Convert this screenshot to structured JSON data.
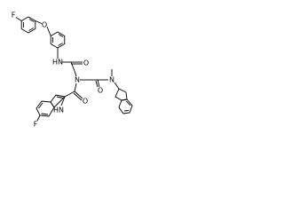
{
  "nodes": [
    {
      "label": "F"
    },
    {
      "label": "O"
    },
    {
      "label": "HN"
    },
    {
      "label": "O"
    },
    {
      "label": "N"
    },
    {
      "label": "O"
    },
    {
      "label": "N"
    },
    {
      "label": "O"
    },
    {
      "label": "HN"
    },
    {
      "label": "F"
    }
  ]
}
